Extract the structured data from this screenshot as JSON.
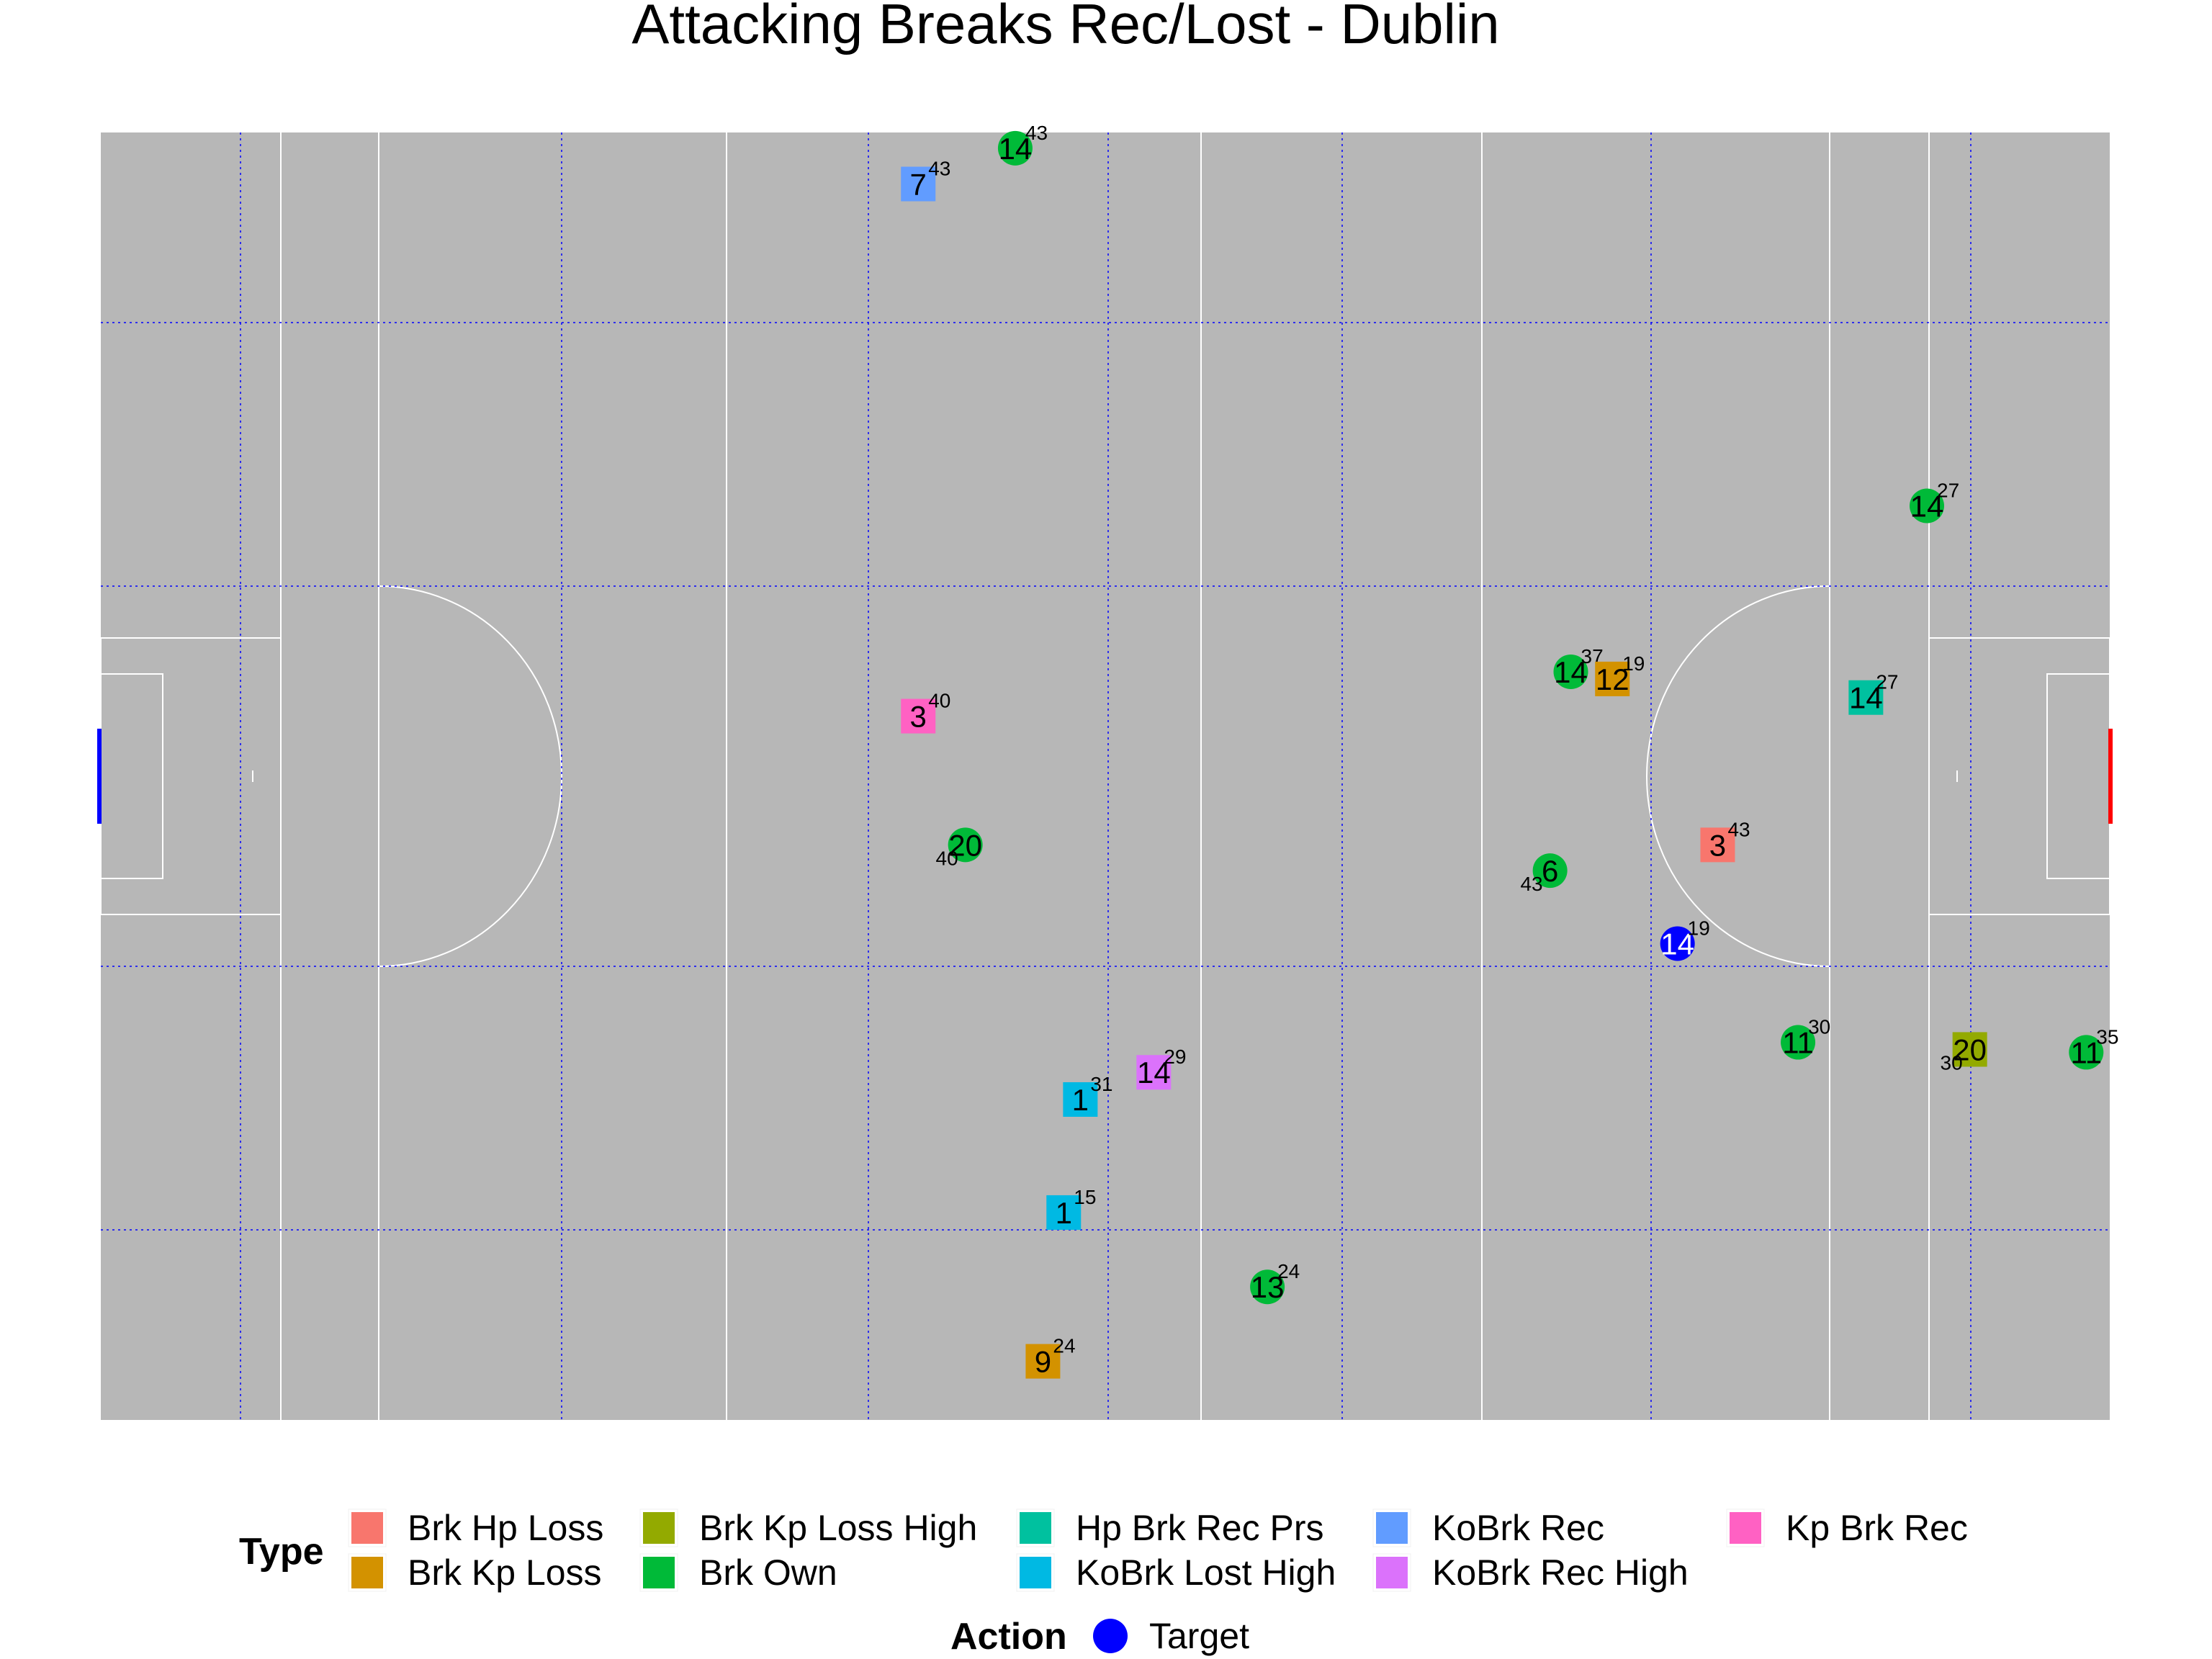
{
  "chart_data": {
    "type": "scatter",
    "title": "Attacking Breaks Rec/Lost - Dublin",
    "pitch": {
      "background": "#b7b7b7",
      "line_color": "#ffffff",
      "grid_color": "#0000ff",
      "left_goal_color": "#0000ff",
      "right_goal_color": "#ff0000",
      "xlim": [
        0,
        145
      ],
      "ylim": [
        0,
        90
      ]
    },
    "legend": {
      "type_title": "Type",
      "action_title": "Action",
      "placement": "bottom",
      "types": [
        {
          "label": "Brk Hp Loss",
          "color": "#f8766d"
        },
        {
          "label": "Brk Kp Loss",
          "color": "#d39200"
        },
        {
          "label": "Brk Kp Loss High",
          "color": "#93aa00"
        },
        {
          "label": "Brk Own",
          "color": "#00ba38"
        },
        {
          "label": "Hp Brk Rec Prs",
          "color": "#00c19f"
        },
        {
          "label": "KoBrk Lost High",
          "color": "#00b9e3"
        },
        {
          "label": "KoBrk Rec",
          "color": "#619cff"
        },
        {
          "label": "KoBrk Rec High",
          "color": "#db72fb"
        },
        {
          "label": "Kp Brk Rec",
          "color": "#ff61c3"
        }
      ],
      "actions": [
        {
          "label": "Target",
          "color": "#0000ff"
        }
      ]
    },
    "points": [
      {
        "x": 66.0,
        "y": 88.9,
        "player": "14",
        "minute": "43",
        "type": "Brk Own",
        "shape": "circle",
        "minute_pos": "right"
      },
      {
        "x": 59.0,
        "y": 86.4,
        "player": "7",
        "minute": "43",
        "type": "KoBrk Rec",
        "shape": "square",
        "minute_pos": "right"
      },
      {
        "x": 131.8,
        "y": 63.9,
        "player": "14",
        "minute": "27",
        "type": "Brk Own",
        "shape": "circle",
        "minute_pos": "right"
      },
      {
        "x": 106.1,
        "y": 52.3,
        "player": "14",
        "minute": "37",
        "type": "Brk Own",
        "shape": "circle",
        "minute_pos": "right"
      },
      {
        "x": 109.1,
        "y": 51.8,
        "player": "12",
        "minute": "19",
        "type": "Brk Kp Loss",
        "shape": "square",
        "minute_pos": "right"
      },
      {
        "x": 127.4,
        "y": 50.5,
        "player": "14",
        "minute": "27",
        "type": "Hp Brk Rec Prs",
        "shape": "square",
        "minute_pos": "right"
      },
      {
        "x": 59.0,
        "y": 49.2,
        "player": "3",
        "minute": "40",
        "type": "Kp Brk Rec",
        "shape": "square",
        "minute_pos": "right"
      },
      {
        "x": 62.4,
        "y": 40.2,
        "player": "20",
        "minute": "40",
        "type": "Brk Own",
        "shape": "circle",
        "minute_pos": "below-left"
      },
      {
        "x": 116.7,
        "y": 40.2,
        "player": "3",
        "minute": "43",
        "type": "Brk Hp Loss",
        "shape": "square",
        "minute_pos": "right"
      },
      {
        "x": 104.6,
        "y": 38.4,
        "player": "6",
        "minute": "43",
        "type": "Brk Own",
        "shape": "circle",
        "minute_pos": "below-left"
      },
      {
        "x": 113.8,
        "y": 33.3,
        "player": "14",
        "minute": "19",
        "type": "Target",
        "shape": "circle",
        "color": "#0000ff",
        "minute_pos": "right",
        "white": true
      },
      {
        "x": 122.5,
        "y": 26.4,
        "player": "11",
        "minute": "30",
        "type": "Brk Own",
        "shape": "circle",
        "minute_pos": "right"
      },
      {
        "x": 134.9,
        "y": 25.9,
        "player": "20",
        "minute": "30",
        "type": "Brk Kp Loss High",
        "shape": "square",
        "minute_pos": "below-left"
      },
      {
        "x": 143.3,
        "y": 25.7,
        "player": "11",
        "minute": "35",
        "type": "Brk Own",
        "shape": "circle",
        "minute_pos": "right"
      },
      {
        "x": 76.0,
        "y": 24.3,
        "player": "14",
        "minute": "29",
        "type": "KoBrk Rec High",
        "shape": "square",
        "minute_pos": "right"
      },
      {
        "x": 70.7,
        "y": 22.4,
        "player": "1",
        "minute": "31",
        "type": "KoBrk Lost High",
        "shape": "square",
        "minute_pos": "right"
      },
      {
        "x": 69.5,
        "y": 14.5,
        "player": "1",
        "minute": "15",
        "type": "KoBrk Lost High",
        "shape": "square",
        "minute_pos": "right"
      },
      {
        "x": 84.2,
        "y": 9.3,
        "player": "13",
        "minute": "24",
        "type": "Brk Own",
        "shape": "circle",
        "minute_pos": "right"
      },
      {
        "x": 68.0,
        "y": 4.1,
        "player": "9",
        "minute": "24",
        "type": "Brk Kp Loss",
        "shape": "square",
        "minute_pos": "right"
      }
    ]
  }
}
